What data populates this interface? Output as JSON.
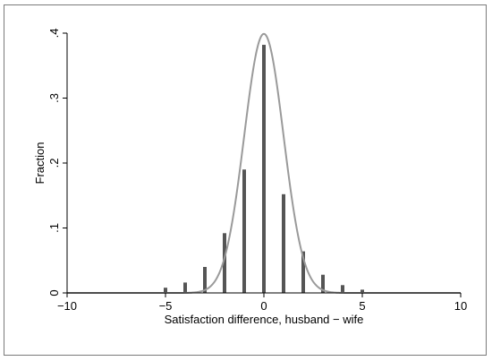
{
  "chart_data": {
    "type": "bar",
    "title": "",
    "xlabel": "Satisfaction difference, husband − wife",
    "ylabel": "Fraction",
    "xlim": [
      -10,
      10
    ],
    "ylim": [
      0,
      0.4
    ],
    "xticks": [
      -10,
      -5,
      0,
      5,
      10
    ],
    "xtick_labels": [
      "−10",
      "−5",
      "0",
      "5",
      "10"
    ],
    "yticks": [
      0,
      0.1,
      0.2,
      0.3,
      0.4
    ],
    "ytick_labels": [
      "0",
      ".1",
      ".2",
      ".3",
      ".4"
    ],
    "grid": false,
    "bars": {
      "x": [
        -5,
        -4,
        -3,
        -2,
        -1,
        0,
        1,
        2,
        3,
        4,
        5
      ],
      "values": [
        0.008,
        0.016,
        0.04,
        0.092,
        0.19,
        0.382,
        0.152,
        0.064,
        0.028,
        0.012,
        0.005
      ]
    },
    "overlay": {
      "type": "line",
      "curve": "normal density",
      "mean": 0,
      "sd": 1
    },
    "colors": {
      "bars": "#555555",
      "curve": "#9a9a9a",
      "axes": "#000000",
      "frame": "#7a7a7a"
    }
  }
}
